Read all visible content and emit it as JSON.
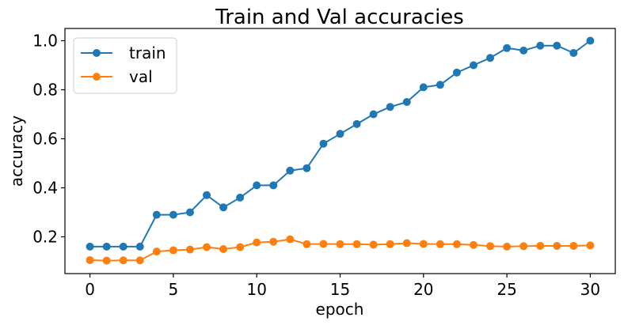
{
  "chart_data": {
    "type": "line",
    "title": "Train and Val accuracies",
    "xlabel": "epoch",
    "ylabel": "accuracy",
    "xlim": [
      -1.5,
      31.5
    ],
    "ylim": [
      0.05,
      1.05
    ],
    "xticks": [
      0,
      5,
      10,
      15,
      20,
      25,
      30
    ],
    "yticks": [
      0.2,
      0.4,
      0.6,
      0.8,
      1.0
    ],
    "ytick_labels": [
      "0.2",
      "0.4",
      "0.6",
      "0.8",
      "1.0"
    ],
    "grid": false,
    "legend_position": "top-left",
    "x": [
      0,
      1,
      2,
      3,
      4,
      5,
      6,
      7,
      8,
      9,
      10,
      11,
      12,
      13,
      14,
      15,
      16,
      17,
      18,
      19,
      20,
      21,
      22,
      23,
      24,
      25,
      26,
      27,
      28,
      29,
      30
    ],
    "series": [
      {
        "name": "train",
        "color": "#1f77b4",
        "values": [
          0.16,
          0.16,
          0.16,
          0.16,
          0.29,
          0.29,
          0.3,
          0.37,
          0.32,
          0.36,
          0.41,
          0.41,
          0.47,
          0.48,
          0.58,
          0.62,
          0.66,
          0.7,
          0.73,
          0.75,
          0.81,
          0.82,
          0.87,
          0.9,
          0.93,
          0.97,
          0.96,
          0.98,
          0.98,
          0.95,
          1.0
        ]
      },
      {
        "name": "val",
        "color": "#ff7f0e",
        "values": [
          0.105,
          0.103,
          0.104,
          0.104,
          0.14,
          0.145,
          0.148,
          0.158,
          0.15,
          0.158,
          0.177,
          0.18,
          0.19,
          0.17,
          0.171,
          0.17,
          0.17,
          0.168,
          0.17,
          0.174,
          0.171,
          0.17,
          0.17,
          0.167,
          0.162,
          0.16,
          0.162,
          0.163,
          0.163,
          0.163,
          0.165
        ]
      }
    ]
  }
}
